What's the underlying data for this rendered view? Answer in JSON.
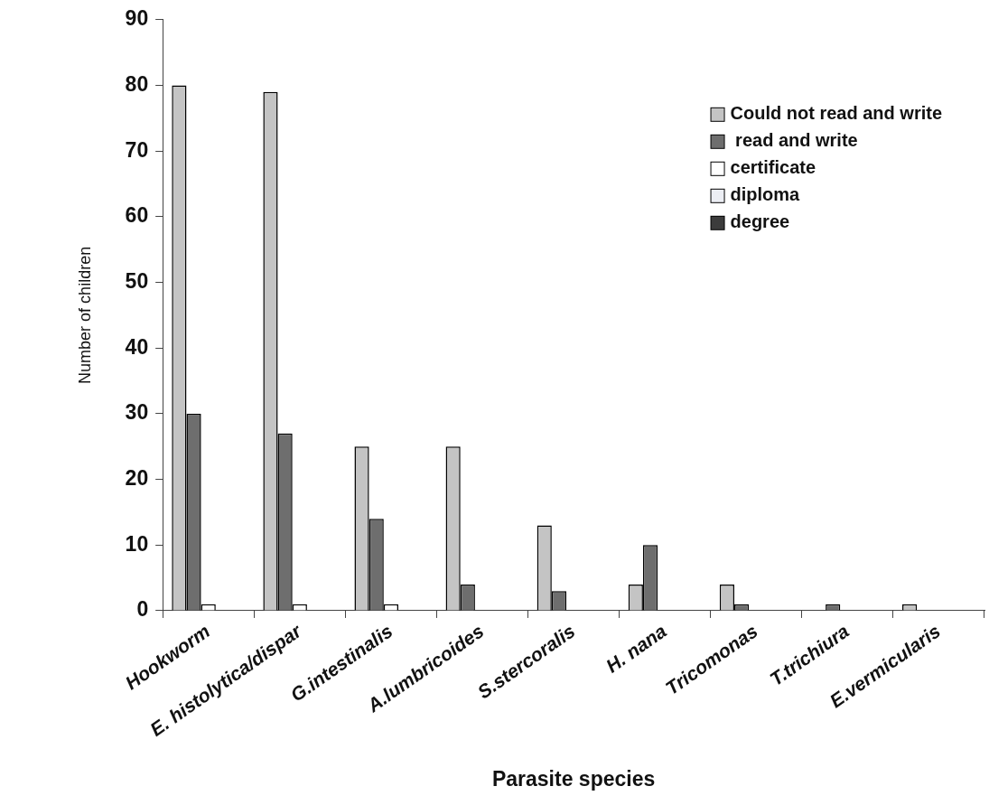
{
  "chart_data": {
    "type": "bar",
    "xlabel": "Parasite species",
    "ylabel": "Number of children",
    "categories": [
      "Hookworm",
      "E. histolytica/dispar",
      "G.intestinalis",
      "A.lumbricoides",
      "S.stercoralis",
      "H. nana",
      "Tricomonas",
      "T.trichiura",
      "E.vermicularis"
    ],
    "series": [
      {
        "name": "Could not read and write",
        "color": "#c4c4c4",
        "values": [
          80,
          79,
          25,
          25,
          13,
          4,
          4,
          0,
          1
        ]
      },
      {
        "name": " read and write",
        "color": "#6e6e6e",
        "values": [
          30,
          27,
          14,
          4,
          3,
          10,
          1,
          1,
          0
        ]
      },
      {
        "name": "certificate",
        "color": "#ffffff",
        "values": [
          1,
          1,
          1,
          0,
          0,
          0,
          0,
          0,
          0
        ]
      },
      {
        "name": "diploma",
        "color": "#eceef4",
        "values": [
          0,
          0,
          0,
          0,
          0,
          0,
          0,
          0,
          0
        ]
      },
      {
        "name": "degree",
        "color": "#3c3c3c",
        "values": [
          0,
          0,
          0,
          0,
          0,
          0,
          0,
          0,
          0
        ]
      }
    ],
    "ylim": [
      0,
      90
    ],
    "yticks": [
      0,
      10,
      20,
      30,
      40,
      50,
      60,
      70,
      80,
      90
    ],
    "grid": false,
    "legend": "top right"
  }
}
